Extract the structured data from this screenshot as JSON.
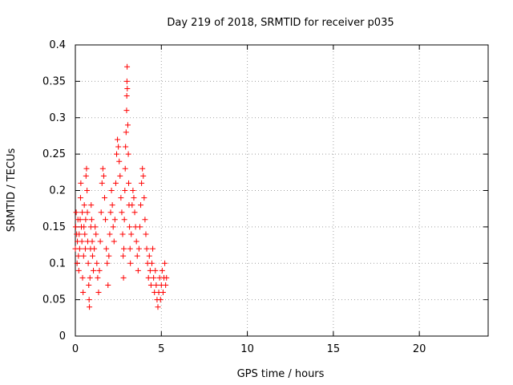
{
  "chart_data": {
    "type": "scatter",
    "title": "Day 219 of 2018, SRMTID for receiver p035",
    "xlabel": "GPS time / hours",
    "ylabel": "SRMTID / TECUs",
    "xlim": [
      0,
      24
    ],
    "ylim": [
      0,
      0.4
    ],
    "xticks": [
      0,
      5,
      10,
      15,
      20
    ],
    "yticks": [
      0,
      0.05,
      0.1,
      0.15,
      0.2,
      0.25,
      0.3,
      0.35,
      0.4
    ],
    "xtick_labels": [
      "0",
      "5",
      "10",
      "15",
      "20"
    ],
    "ytick_labels": [
      "0",
      "0.05",
      "0.1",
      "0.15",
      "0.2",
      "0.25",
      "0.3",
      "0.35",
      "0.4"
    ],
    "grid": true,
    "marker": "+",
    "series": [
      {
        "name": "SRMTID",
        "color": "#ff0000",
        "points": [
          [
            0.0,
            0.12
          ],
          [
            0.02,
            0.15
          ],
          [
            0.05,
            0.17
          ],
          [
            0.08,
            0.14
          ],
          [
            0.1,
            0.1
          ],
          [
            0.12,
            0.13
          ],
          [
            0.15,
            0.16
          ],
          [
            0.18,
            0.11
          ],
          [
            0.2,
            0.09
          ],
          [
            0.22,
            0.14
          ],
          [
            0.25,
            0.12
          ],
          [
            0.28,
            0.16
          ],
          [
            0.3,
            0.19
          ],
          [
            0.32,
            0.21
          ],
          [
            0.35,
            0.15
          ],
          [
            0.38,
            0.13
          ],
          [
            0.4,
            0.17
          ],
          [
            0.42,
            0.08
          ],
          [
            0.45,
            0.06
          ],
          [
            0.48,
            0.11
          ],
          [
            0.5,
            0.15
          ],
          [
            0.52,
            0.18
          ],
          [
            0.55,
            0.14
          ],
          [
            0.58,
            0.12
          ],
          [
            0.6,
            0.16
          ],
          [
            0.62,
            0.22
          ],
          [
            0.65,
            0.23
          ],
          [
            0.68,
            0.2
          ],
          [
            0.7,
            0.17
          ],
          [
            0.72,
            0.13
          ],
          [
            0.75,
            0.1
          ],
          [
            0.78,
            0.07
          ],
          [
            0.8,
            0.05
          ],
          [
            0.82,
            0.04
          ],
          [
            0.85,
            0.08
          ],
          [
            0.88,
            0.12
          ],
          [
            0.9,
            0.15
          ],
          [
            0.92,
            0.18
          ],
          [
            0.95,
            0.16
          ],
          [
            0.98,
            0.13
          ],
          [
            1.0,
            0.11
          ],
          [
            1.05,
            0.09
          ],
          [
            1.1,
            0.12
          ],
          [
            1.15,
            0.15
          ],
          [
            1.2,
            0.14
          ],
          [
            1.25,
            0.1
          ],
          [
            1.3,
            0.08
          ],
          [
            1.35,
            0.06
          ],
          [
            1.4,
            0.09
          ],
          [
            1.45,
            0.13
          ],
          [
            1.5,
            0.17
          ],
          [
            1.55,
            0.21
          ],
          [
            1.6,
            0.23
          ],
          [
            1.65,
            0.22
          ],
          [
            1.7,
            0.19
          ],
          [
            1.75,
            0.16
          ],
          [
            1.8,
            0.12
          ],
          [
            1.85,
            0.1
          ],
          [
            1.9,
            0.07
          ],
          [
            1.95,
            0.11
          ],
          [
            2.0,
            0.14
          ],
          [
            2.05,
            0.17
          ],
          [
            2.1,
            0.2
          ],
          [
            2.15,
            0.18
          ],
          [
            2.2,
            0.15
          ],
          [
            2.25,
            0.13
          ],
          [
            2.3,
            0.16
          ],
          [
            2.35,
            0.21
          ],
          [
            2.4,
            0.25
          ],
          [
            2.45,
            0.27
          ],
          [
            2.5,
            0.26
          ],
          [
            2.55,
            0.24
          ],
          [
            2.6,
            0.22
          ],
          [
            2.65,
            0.19
          ],
          [
            2.7,
            0.17
          ],
          [
            2.75,
            0.14
          ],
          [
            2.78,
            0.11
          ],
          [
            2.8,
            0.08
          ],
          [
            2.82,
            0.12
          ],
          [
            2.85,
            0.16
          ],
          [
            2.88,
            0.2
          ],
          [
            2.9,
            0.23
          ],
          [
            2.92,
            0.26
          ],
          [
            2.95,
            0.28
          ],
          [
            2.98,
            0.31
          ],
          [
            2.99,
            0.33
          ],
          [
            3.0,
            0.35
          ],
          [
            3.01,
            0.37
          ],
          [
            3.02,
            0.34
          ],
          [
            3.05,
            0.29
          ],
          [
            3.08,
            0.25
          ],
          [
            3.1,
            0.21
          ],
          [
            3.12,
            0.18
          ],
          [
            3.15,
            0.15
          ],
          [
            3.18,
            0.12
          ],
          [
            3.2,
            0.1
          ],
          [
            3.25,
            0.14
          ],
          [
            3.3,
            0.18
          ],
          [
            3.35,
            0.2
          ],
          [
            3.4,
            0.19
          ],
          [
            3.45,
            0.17
          ],
          [
            3.5,
            0.15
          ],
          [
            3.55,
            0.13
          ],
          [
            3.6,
            0.11
          ],
          [
            3.65,
            0.09
          ],
          [
            3.7,
            0.12
          ],
          [
            3.75,
            0.15
          ],
          [
            3.8,
            0.18
          ],
          [
            3.85,
            0.21
          ],
          [
            3.9,
            0.23
          ],
          [
            3.95,
            0.22
          ],
          [
            4.0,
            0.19
          ],
          [
            4.05,
            0.16
          ],
          [
            4.1,
            0.14
          ],
          [
            4.15,
            0.12
          ],
          [
            4.2,
            0.1
          ],
          [
            4.25,
            0.08
          ],
          [
            4.3,
            0.11
          ],
          [
            4.35,
            0.09
          ],
          [
            4.4,
            0.07
          ],
          [
            4.45,
            0.1
          ],
          [
            4.5,
            0.12
          ],
          [
            4.55,
            0.08
          ],
          [
            4.6,
            0.06
          ],
          [
            4.65,
            0.09
          ],
          [
            4.7,
            0.07
          ],
          [
            4.75,
            0.05
          ],
          [
            4.8,
            0.04
          ],
          [
            4.85,
            0.06
          ],
          [
            4.9,
            0.08
          ],
          [
            4.95,
            0.05
          ],
          [
            5.0,
            0.07
          ],
          [
            5.05,
            0.09
          ],
          [
            5.1,
            0.06
          ],
          [
            5.15,
            0.08
          ],
          [
            5.2,
            0.1
          ],
          [
            5.25,
            0.07
          ],
          [
            5.3,
            0.08
          ]
        ]
      }
    ]
  }
}
